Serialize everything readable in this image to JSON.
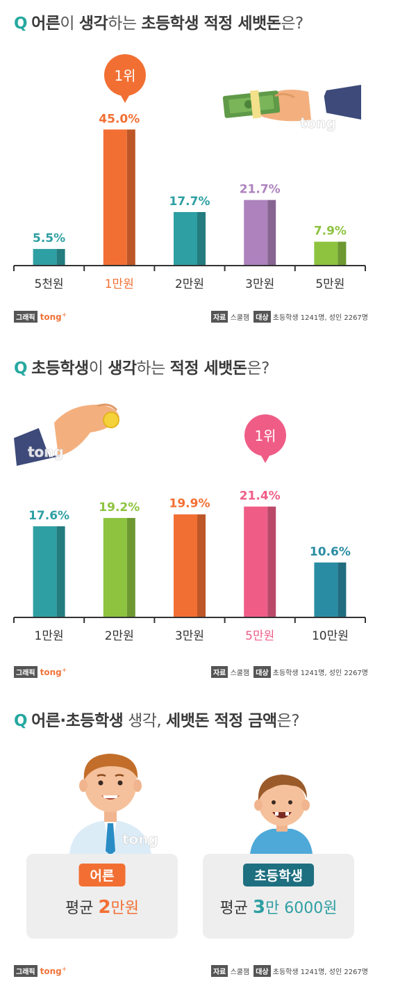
{
  "section1": {
    "q": "Q",
    "title_parts": [
      "어른",
      "이 ",
      "생각",
      "하는 ",
      "초등학생 적정 세뱃돈",
      "은?"
    ],
    "rank_badge": "1위",
    "footer": {
      "graphic": "그래픽",
      "brand": "tong",
      "source_tag": "자료",
      "source": "스쿨잼",
      "target_tag": "대상",
      "target": "초등학생 1241명, 성인 2267명"
    }
  },
  "section2": {
    "q": "Q",
    "title_parts": [
      "초등학생",
      "이 ",
      "생각",
      "하는 ",
      "적정 세뱃돈",
      "은?"
    ],
    "rank_badge": "1위",
    "footer": {
      "graphic": "그래픽",
      "brand": "tong",
      "source_tag": "자료",
      "source": "스쿨잼",
      "target_tag": "대상",
      "target": "초등학생 1241명, 성인 2267명"
    }
  },
  "section3": {
    "q": "Q",
    "title_parts": [
      "어른·초등학생",
      " 생각, ",
      "세뱃돈 적정 금액",
      "은?"
    ],
    "adult_label": "어른",
    "adult_avg_prefix": "평균 ",
    "adult_avg_num": "2",
    "adult_avg_suffix": "만원",
    "child_label": "초등학생",
    "child_avg_prefix": "평균 ",
    "child_avg_num": "3",
    "child_avg_suffix": "만 6000원",
    "footer": {
      "graphic": "그래픽",
      "brand": "tong",
      "source_tag": "자료",
      "source": "스쿨잼",
      "target_tag": "대상",
      "target": "초등학생 1241명, 성인 2267명"
    }
  },
  "watermark": "tong",
  "colors": {
    "teal": "#2e9fa3",
    "orange": "#f26f33",
    "purple": "#ad82bd",
    "green": "#8dc33f",
    "pink": "#ef5d87",
    "blue": "#2a8ca3",
    "dark_teal": "#1e6f80"
  },
  "chart_data": [
    {
      "type": "bar",
      "categories": [
        "5천원",
        "1만원",
        "2만원",
        "3만원",
        "5만원"
      ],
      "values": [
        5.5,
        45.0,
        17.7,
        21.7,
        7.9
      ],
      "labels": [
        "5.5%",
        "45.0%",
        "17.7%",
        "21.7%",
        "7.9%"
      ],
      "colors": [
        "#2e9fa3",
        "#f26f33",
        "#2e9fa3",
        "#ad82bd",
        "#8dc33f"
      ],
      "highlight_index": 1,
      "unit": "%"
    },
    {
      "type": "bar",
      "categories": [
        "1만원",
        "2만원",
        "3만원",
        "5만원",
        "10만원"
      ],
      "values": [
        17.6,
        19.2,
        19.9,
        21.4,
        10.6
      ],
      "labels": [
        "17.6%",
        "19.2%",
        "19.9%",
        "21.4%",
        "10.6%"
      ],
      "colors": [
        "#2e9fa3",
        "#8dc33f",
        "#f26f33",
        "#ef5d87",
        "#2a8ca3"
      ],
      "highlight_index": 3,
      "unit": "%"
    }
  ]
}
